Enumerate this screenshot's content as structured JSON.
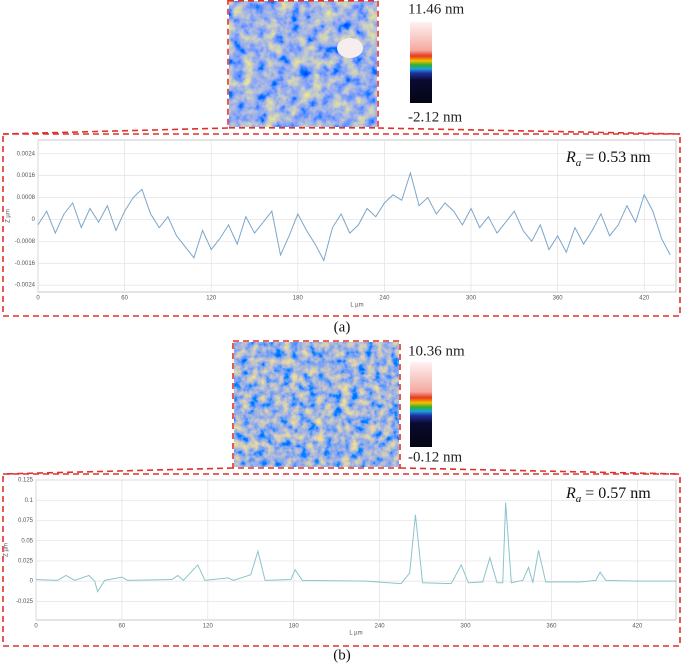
{
  "chart_data": [
    {
      "type": "line",
      "caption": "(a)",
      "colorbar_max": "11.46 nm",
      "colorbar_min": "-2.12 nm",
      "annotation": {
        "symbol": "R",
        "subscript": "a",
        "text": " = 0.53 nm"
      },
      "x_label": "L µm",
      "y_label": "Z µm",
      "grid": true,
      "xlim": [
        0,
        442
      ],
      "xticks": [
        0,
        60,
        120,
        180,
        240,
        300,
        360,
        420
      ],
      "ylim": [
        -0.00265,
        0.0029
      ],
      "yticks": [
        -0.0024,
        -0.0016,
        -0.0008,
        0,
        0.0008,
        0.0016,
        0.0024
      ],
      "x": [
        0,
        6,
        12,
        18,
        24,
        30,
        36,
        42,
        48,
        54,
        60,
        66,
        72,
        78,
        84,
        90,
        96,
        102,
        108,
        114,
        120,
        126,
        132,
        138,
        144,
        150,
        156,
        162,
        168,
        174,
        180,
        186,
        192,
        198,
        204,
        210,
        216,
        222,
        228,
        234,
        240,
        246,
        252,
        258,
        264,
        270,
        276,
        282,
        288,
        294,
        300,
        306,
        312,
        318,
        324,
        330,
        336,
        342,
        348,
        354,
        360,
        366,
        372,
        378,
        384,
        390,
        396,
        402,
        408,
        414,
        420,
        426,
        432,
        438
      ],
      "series": [
        {
          "color": "#7aa6cc",
          "values": [
            -0.0002,
            0.0003,
            -0.0005,
            0.0002,
            0.0006,
            -0.0003,
            0.0004,
            -0.0001,
            0.0005,
            -0.0004,
            0.0003,
            0.0008,
            0.0011,
            0.0002,
            -0.0003,
            0.0001,
            -0.0006,
            -0.001,
            -0.0014,
            -0.0004,
            -0.0011,
            -0.0007,
            -0.0002,
            -0.0009,
            0.0001,
            -0.0005,
            -0.0001,
            0.0003,
            -0.0013,
            -0.0006,
            0.0002,
            -0.0004,
            -0.0009,
            -0.0015,
            -0.0003,
            0.0002,
            -0.0005,
            -0.0002,
            0.0004,
            0.0001,
            0.0006,
            0.0009,
            0.0007,
            0.0017,
            0.0005,
            0.0008,
            0.0002,
            0.0006,
            0.0003,
            -0.0002,
            0.0004,
            -0.0003,
            0.0001,
            -0.0005,
            -0.0001,
            0.0003,
            -0.0004,
            -0.0008,
            -0.0002,
            -0.0011,
            -0.0006,
            -0.0012,
            -0.0003,
            -0.0009,
            -0.0004,
            0.0002,
            -0.0006,
            -0.0002,
            0.0005,
            -0.0001,
            0.0009,
            0.0003,
            -0.0007,
            -0.0013
          ]
        }
      ]
    },
    {
      "type": "line",
      "caption": "(b)",
      "colorbar_max": "10.36 nm",
      "colorbar_min": "-0.12 nm",
      "annotation": {
        "symbol": "R",
        "subscript": "a",
        "text": " = 0.57 nm"
      },
      "x_label": "L µm",
      "y_label": "Z µm",
      "grid": true,
      "xlim": [
        0,
        447
      ],
      "xticks": [
        0,
        60,
        120,
        180,
        240,
        300,
        360,
        420
      ],
      "ylim": [
        -0.048,
        0.125
      ],
      "yticks": [
        -0.025,
        0,
        0.025,
        0.05,
        0.075,
        0.1,
        0.125
      ],
      "x": [
        0,
        15,
        21,
        27,
        37,
        41,
        43,
        48,
        60,
        64,
        95,
        99,
        103,
        113,
        118,
        134,
        138,
        150,
        155,
        160,
        178,
        181,
        186,
        230,
        255,
        261,
        265,
        270,
        290,
        297,
        302,
        312,
        317,
        322,
        326,
        328,
        332,
        340,
        344,
        347,
        351,
        356,
        380,
        391,
        394,
        398,
        420,
        447
      ],
      "series": [
        {
          "color": "#8cc4cc",
          "values": [
            0.002,
            0.001,
            0.007,
            0.001,
            0.007,
            0.0,
            -0.013,
            0.001,
            0.005,
            0.001,
            0.002,
            0.007,
            0.001,
            0.02,
            0.001,
            0.004,
            0.001,
            0.008,
            0.037,
            0.001,
            0.002,
            0.014,
            0.001,
            0.0,
            -0.003,
            0.01,
            0.082,
            -0.002,
            -0.003,
            0.02,
            -0.002,
            -0.001,
            0.029,
            -0.002,
            -0.002,
            0.097,
            -0.002,
            0.001,
            0.017,
            -0.002,
            0.038,
            -0.001,
            -0.001,
            0.001,
            0.011,
            0.001,
            0.0,
            0.0
          ]
        }
      ]
    }
  ]
}
